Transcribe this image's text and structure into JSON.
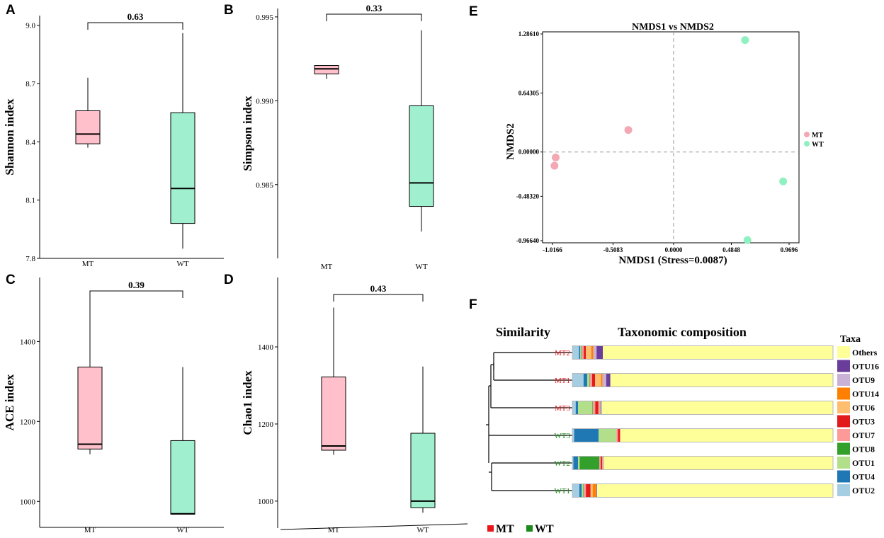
{
  "chart_data": [
    {
      "panel": "A",
      "type": "box",
      "ylabel": "Shannon index",
      "pvalue": "0.63",
      "yticks": [
        "7.8",
        "8.1",
        "8.4",
        "8.7",
        "9.0"
      ],
      "ylim": [
        7.8,
        9.05
      ],
      "categories": [
        "MT",
        "WT"
      ],
      "boxes": [
        {
          "group": "MT",
          "min": 8.37,
          "q1": 8.39,
          "median": 8.44,
          "q3": 8.56,
          "max": 8.73
        },
        {
          "group": "WT",
          "min": 7.85,
          "q1": 7.98,
          "median": 8.16,
          "q3": 8.55,
          "max": 8.96
        }
      ]
    },
    {
      "panel": "B",
      "type": "box",
      "ylabel": "Simpson index",
      "pvalue": "0.33",
      "yticks": [
        "0.985",
        "0.990",
        "0.995"
      ],
      "ylim": [
        0.9806,
        0.9955
      ],
      "categories": [
        "MT",
        "WT"
      ],
      "boxes": [
        {
          "group": "MT",
          "min": 0.9913,
          "q1": 0.9916,
          "median": 0.9919,
          "q3": 0.9921,
          "max": 0.9921
        },
        {
          "group": "WT",
          "min": 0.9822,
          "q1": 0.9837,
          "median": 0.9851,
          "q3": 0.9897,
          "max": 0.9942
        }
      ]
    },
    {
      "panel": "C",
      "type": "box",
      "ylabel": "ACE index",
      "pvalue": "0.39",
      "yticks": [
        "1000",
        "1200",
        "1400"
      ],
      "ylim": [
        935,
        1560
      ],
      "categories": [
        "MT",
        "WT"
      ],
      "boxes": [
        {
          "group": "MT",
          "min": 1118,
          "q1": 1131,
          "median": 1143,
          "q3": 1336,
          "max": 1527
        },
        {
          "group": "WT",
          "min": 968,
          "q1": 968,
          "median": 969,
          "q3": 1152,
          "max": 1336
        }
      ]
    },
    {
      "panel": "D",
      "type": "box",
      "ylabel": "Chao1 index",
      "pvalue": "0.43",
      "yticks": [
        "1000",
        "1200",
        "1400"
      ],
      "ylim": [
        930,
        1580
      ],
      "categories": [
        "MT",
        "WT"
      ],
      "boxes": [
        {
          "group": "MT",
          "min": 1120,
          "q1": 1132,
          "median": 1143,
          "q3": 1322,
          "max": 1502
        },
        {
          "group": "WT",
          "min": 970,
          "q1": 983,
          "median": 1000,
          "q3": 1176,
          "max": 1349
        }
      ]
    },
    {
      "panel": "E",
      "type": "scatter",
      "title": "NMDS1 vs NMDS2",
      "xlabel": "NMDS1 (Stress=0.0087)",
      "ylabel": "NMDS2",
      "xticks": [
        "-1.0166",
        "-0.5083",
        "0.0000",
        "0.4848",
        "0.9696"
      ],
      "xtick_values": [
        -1.0166,
        -0.5083,
        0.0,
        0.4848,
        0.9696
      ],
      "yticks": [
        "-0.96640",
        "-0.48320",
        "0.00000",
        "0.64305",
        "1.28610"
      ],
      "ytick_values": [
        -0.9664,
        -0.4832,
        0.0,
        0.64305,
        1.2861
      ],
      "xlim": [
        -1.0166,
        0.9696
      ],
      "ylim": [
        -0.9664,
        1.2861
      ],
      "legend": [
        "MT",
        "WT"
      ],
      "series": [
        {
          "name": "MT",
          "points": [
            [
              -0.99,
              -0.06
            ],
            [
              -1.0,
              -0.15
            ],
            [
              -0.38,
              0.24
            ]
          ]
        },
        {
          "name": "WT",
          "points": [
            [
              0.6,
              1.22
            ],
            [
              0.92,
              -0.32
            ],
            [
              0.62,
              -0.96
            ]
          ]
        }
      ]
    },
    {
      "panel": "F",
      "type": "stacked-bar",
      "headers": {
        "similarity": "Similarity",
        "composition": "Taxonomic composition",
        "taxa": "Taxa"
      },
      "taxa": [
        "Others",
        "OTU16",
        "OTU9",
        "OTU14",
        "OTU6",
        "OTU3",
        "OTU7",
        "OTU8",
        "OTU1",
        "OTU4",
        "OTU2"
      ],
      "stack_order": [
        "OTU2",
        "OTU4",
        "OTU1",
        "OTU8",
        "OTU7",
        "OTU3",
        "OTU6",
        "OTU14",
        "OTU9",
        "OTU16",
        "Others"
      ],
      "samples": [
        {
          "name": "MT2",
          "group": "MT",
          "values": {
            "OTU2": 2.5,
            "OTU4": 0.5,
            "OTU1": 0.4,
            "OTU8": 0.2,
            "OTU7": 0.7,
            "OTU3": 0.8,
            "OTU6": 2.0,
            "OTU14": 0.8,
            "OTU9": 1.2,
            "OTU16": 2.4,
            "Others": 86.5
          }
        },
        {
          "name": "MT1",
          "group": "MT",
          "values": {
            "OTU2": 4.3,
            "OTU4": 1.4,
            "OTU1": 0.8,
            "OTU8": 0.2,
            "OTU7": 0.9,
            "OTU3": 1.1,
            "OTU6": 2.3,
            "OTU14": 0.6,
            "OTU9": 1.4,
            "OTU16": 1.6,
            "Others": 85.4
          }
        },
        {
          "name": "MT3",
          "group": "MT",
          "values": {
            "OTU2": 1.3,
            "OTU4": 0.9,
            "OTU1": 5.5,
            "OTU8": 0.2,
            "OTU7": 0.9,
            "OTU3": 1.2,
            "OTU6": 0.2,
            "OTU14": 0.2,
            "OTU9": 0.5,
            "OTU16": 0.3,
            "Others": 88.8
          }
        },
        {
          "name": "WT3",
          "group": "WT",
          "values": {
            "OTU2": 0.7,
            "OTU4": 9.4,
            "OTU1": 6.8,
            "OTU8": 0.0,
            "OTU7": 0.6,
            "OTU3": 0.8,
            "OTU6": 0.2,
            "OTU14": 0.0,
            "OTU9": 0.0,
            "OTU16": 0.0,
            "Others": 81.5
          }
        },
        {
          "name": "WT2",
          "group": "WT",
          "values": {
            "OTU2": 0.4,
            "OTU4": 1.8,
            "OTU1": 0.6,
            "OTU8": 7.6,
            "OTU7": 0.5,
            "OTU3": 0.6,
            "OTU6": 0.3,
            "OTU14": 0.0,
            "OTU9": 0.4,
            "OTU16": 0.0,
            "Others": 87.8
          }
        },
        {
          "name": "WT1",
          "group": "WT",
          "values": {
            "OTU2": 2.7,
            "OTU4": 0.9,
            "OTU1": 0.6,
            "OTU8": 0.2,
            "OTU7": 0.8,
            "OTU3": 1.8,
            "OTU6": 0.8,
            "OTU14": 1.3,
            "OTU9": 0.2,
            "OTU16": 0.2,
            "Others": 90.5
          }
        }
      ],
      "groups": [
        {
          "name": "MT",
          "color": "#e8161b"
        },
        {
          "name": "WT",
          "color": "#1b8a1b"
        }
      ]
    }
  ],
  "panel_labels": [
    "A",
    "B",
    "C",
    "D",
    "E",
    "F"
  ],
  "colors": {
    "mt_box": "#ffc0cb",
    "wt_box": "#a0f0d0",
    "mt_point": "#f4a8b4",
    "wt_point": "#8ff0c0",
    "taxa": {
      "Others": "#ffff99",
      "OTU16": "#6a3d9a",
      "OTU9": "#cab2d6",
      "OTU14": "#ff7f00",
      "OTU6": "#fdbf6f",
      "OTU3": "#e31a1c",
      "OTU7": "#fb9a99",
      "OTU8": "#33a02c",
      "OTU1": "#b2df8a",
      "OTU4": "#1f78b4",
      "OTU2": "#a6cee3"
    }
  }
}
